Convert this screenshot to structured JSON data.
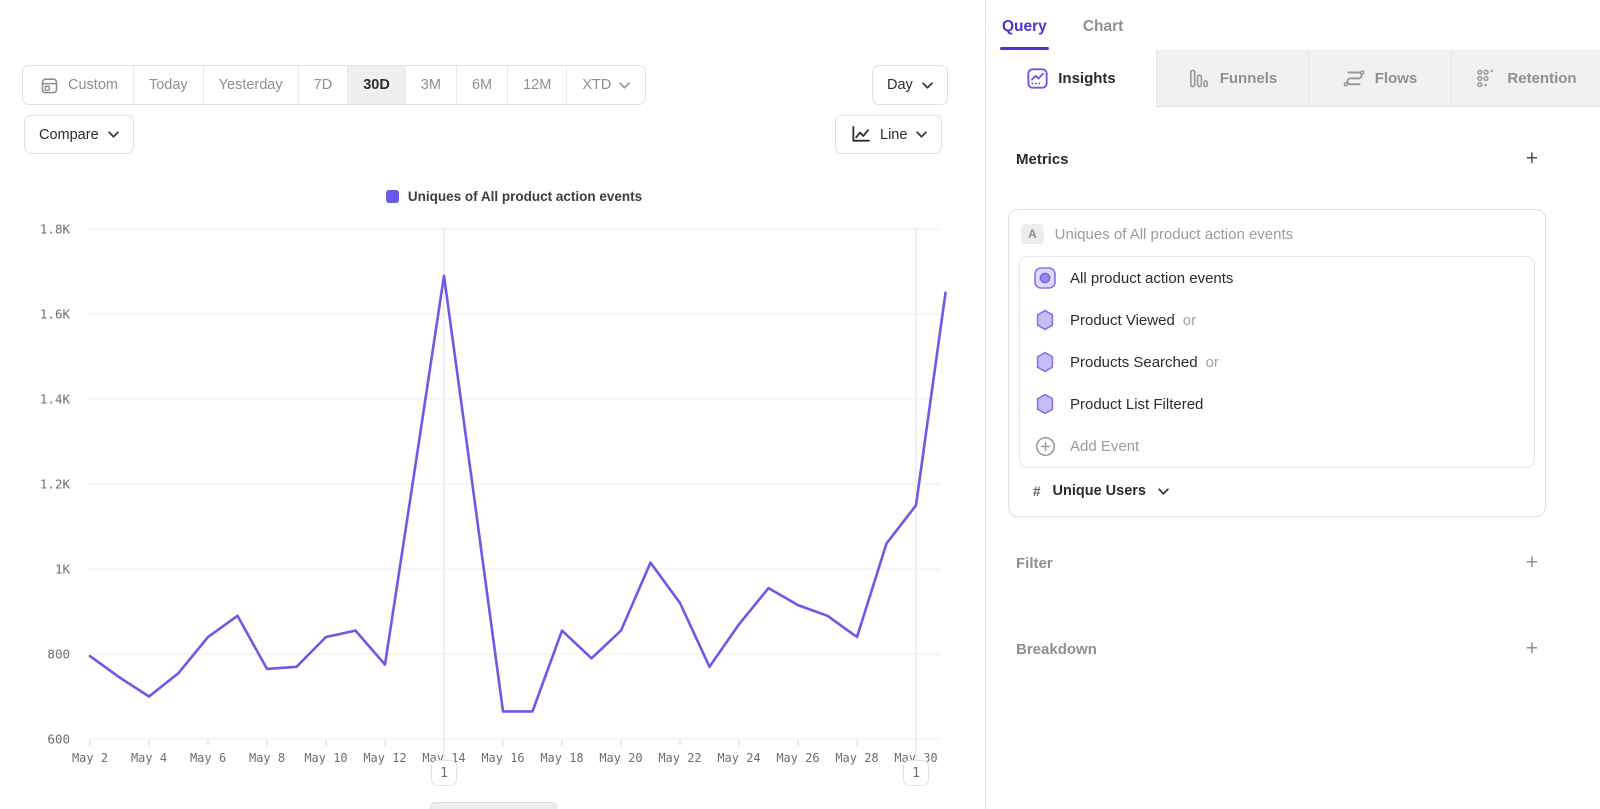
{
  "toolbar": {
    "date_ranges": [
      "Custom",
      "Today",
      "Yesterday",
      "7D",
      "30D",
      "3M",
      "6M",
      "12M",
      "XTD"
    ],
    "selected_range": "30D",
    "granularity": "Day",
    "compare_label": "Compare",
    "chart_type": "Line"
  },
  "chart_data": {
    "type": "line",
    "legend": [
      "Uniques of All product action events"
    ],
    "x": [
      "May 2",
      "May 3",
      "May 4",
      "May 5",
      "May 6",
      "May 7",
      "May 8",
      "May 9",
      "May 10",
      "May 11",
      "May 12",
      "May 13",
      "May 14",
      "May 15",
      "May 16",
      "May 17",
      "May 18",
      "May 19",
      "May 20",
      "May 21",
      "May 22",
      "May 23",
      "May 24",
      "May 25",
      "May 26",
      "May 27",
      "May 28",
      "May 29",
      "May 30",
      "May 31"
    ],
    "series": [
      {
        "name": "Uniques of All product action events",
        "color": "#6a5ae8",
        "values": [
          795,
          745,
          700,
          755,
          840,
          890,
          765,
          770,
          840,
          855,
          775,
          1230,
          1690,
          1180,
          665,
          665,
          855,
          790,
          855,
          1015,
          920,
          770,
          870,
          955,
          915,
          890,
          840,
          1060,
          1150,
          1650
        ]
      }
    ],
    "xticks": [
      "May 2",
      "May 4",
      "May 6",
      "May 8",
      "May 10",
      "May 12",
      "May 14",
      "May 16",
      "May 18",
      "May 20",
      "May 22",
      "May 24",
      "May 26",
      "May 28",
      "May 30"
    ],
    "yticks": [
      "600",
      "800",
      "1K",
      "1.2K",
      "1.4K",
      "1.6K",
      "1.8K"
    ],
    "ylim": [
      600,
      1800
    ],
    "grid": "horizontal",
    "vertical_gridlines": [
      "May 14",
      "May 30"
    ],
    "legend_position": "top-center"
  },
  "annotations": [
    {
      "x": "May 14",
      "label": "1"
    },
    {
      "x": "May 30",
      "label": "1"
    }
  ],
  "panel": {
    "tabs": {
      "query": "Query",
      "chart": "Chart"
    },
    "report_tabs": {
      "insights": "Insights",
      "funnels": "Funnels",
      "flows": "Flows",
      "retention": "Retention"
    },
    "metrics": {
      "title": "Metrics",
      "add": "+",
      "series_badge": "A",
      "series_name": "Uniques of All product action events",
      "events": [
        {
          "name": "All product action events",
          "suffix": ""
        },
        {
          "name": "Product Viewed",
          "suffix": "or"
        },
        {
          "name": "Products Searched",
          "suffix": "or"
        },
        {
          "name": "Product List Filtered",
          "suffix": ""
        }
      ],
      "add_event": "Add Event",
      "aggregation": {
        "symbol": "#",
        "label": "Unique Users"
      }
    },
    "filter": {
      "title": "Filter",
      "add": "+"
    },
    "breakdown": {
      "title": "Breakdown",
      "add": "+"
    }
  },
  "colors": {
    "accent_purple": "#4f32d6",
    "line_purple": "#6a5ae8",
    "hexagon_fill": "#c6bef7",
    "hexagon_stroke": "#8175e9"
  }
}
